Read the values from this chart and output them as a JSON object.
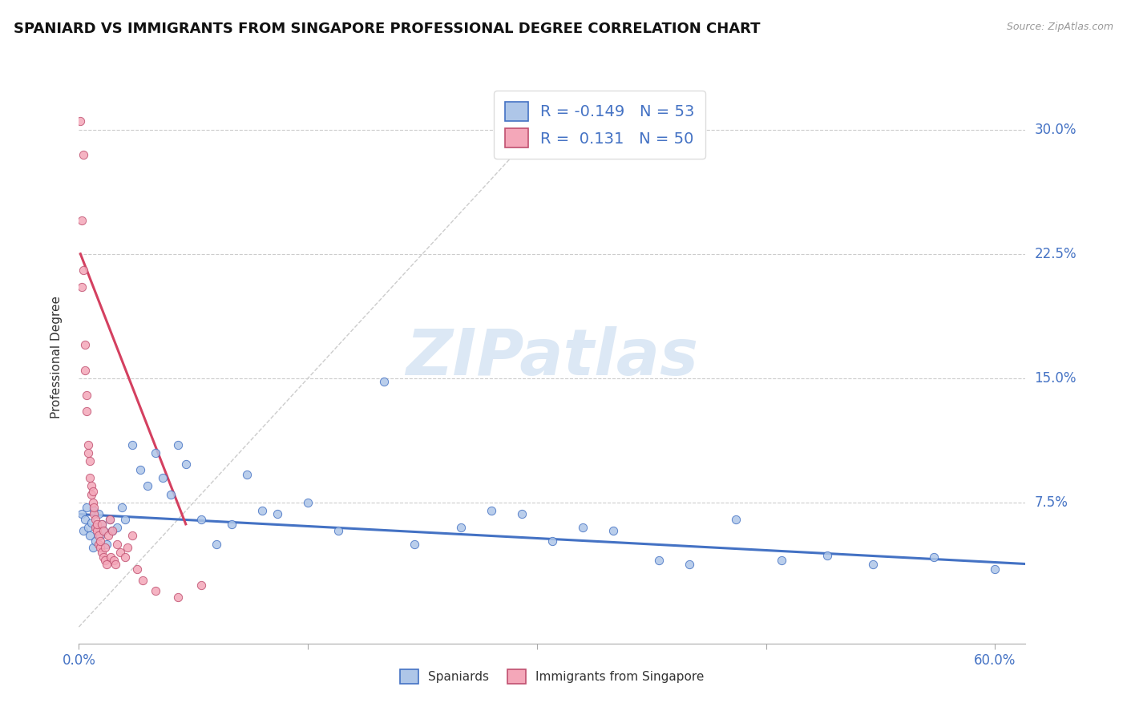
{
  "title": "SPANIARD VS IMMIGRANTS FROM SINGAPORE PROFESSIONAL DEGREE CORRELATION CHART",
  "source": "Source: ZipAtlas.com",
  "ylabel": "Professional Degree",
  "yticks": [
    "7.5%",
    "15.0%",
    "22.5%",
    "30.0%"
  ],
  "ytick_values": [
    0.075,
    0.15,
    0.225,
    0.3
  ],
  "xlim": [
    0.0,
    0.62
  ],
  "ylim": [
    -0.01,
    0.335
  ],
  "r_spaniards": -0.149,
  "n_spaniards": 53,
  "r_singapore": 0.131,
  "n_singapore": 50,
  "color_spaniards": "#aec6e8",
  "color_singapore": "#f4a7b9",
  "color_line_spaniards": "#4472C4",
  "color_line_singapore": "#d44060",
  "legend_label_spaniards": "Spaniards",
  "legend_label_singapore": "Immigrants from Singapore",
  "spaniards_x": [
    0.002,
    0.003,
    0.004,
    0.005,
    0.006,
    0.007,
    0.008,
    0.009,
    0.01,
    0.011,
    0.012,
    0.013,
    0.014,
    0.015,
    0.016,
    0.018,
    0.02,
    0.022,
    0.025,
    0.028,
    0.03,
    0.035,
    0.04,
    0.045,
    0.05,
    0.055,
    0.06,
    0.065,
    0.07,
    0.08,
    0.09,
    0.1,
    0.11,
    0.12,
    0.13,
    0.15,
    0.17,
    0.2,
    0.22,
    0.25,
    0.27,
    0.29,
    0.31,
    0.33,
    0.35,
    0.38,
    0.4,
    0.43,
    0.46,
    0.49,
    0.52,
    0.56,
    0.6
  ],
  "spaniards_y": [
    0.068,
    0.058,
    0.065,
    0.072,
    0.06,
    0.055,
    0.063,
    0.048,
    0.07,
    0.052,
    0.06,
    0.068,
    0.055,
    0.062,
    0.058,
    0.05,
    0.065,
    0.058,
    0.06,
    0.072,
    0.065,
    0.11,
    0.095,
    0.085,
    0.105,
    0.09,
    0.08,
    0.11,
    0.098,
    0.065,
    0.05,
    0.062,
    0.092,
    0.07,
    0.068,
    0.075,
    0.058,
    0.148,
    0.05,
    0.06,
    0.07,
    0.068,
    0.052,
    0.06,
    0.058,
    0.04,
    0.038,
    0.065,
    0.04,
    0.043,
    0.038,
    0.042,
    0.035
  ],
  "singapore_x": [
    0.001,
    0.002,
    0.002,
    0.003,
    0.003,
    0.004,
    0.004,
    0.005,
    0.005,
    0.006,
    0.006,
    0.007,
    0.007,
    0.008,
    0.008,
    0.009,
    0.009,
    0.01,
    0.01,
    0.011,
    0.011,
    0.012,
    0.012,
    0.013,
    0.013,
    0.014,
    0.014,
    0.015,
    0.015,
    0.016,
    0.016,
    0.017,
    0.017,
    0.018,
    0.019,
    0.02,
    0.021,
    0.022,
    0.023,
    0.024,
    0.025,
    0.027,
    0.03,
    0.032,
    0.035,
    0.038,
    0.042,
    0.05,
    0.065,
    0.08
  ],
  "singapore_y": [
    0.305,
    0.245,
    0.205,
    0.285,
    0.215,
    0.17,
    0.155,
    0.14,
    0.13,
    0.11,
    0.105,
    0.1,
    0.09,
    0.085,
    0.08,
    0.082,
    0.075,
    0.068,
    0.072,
    0.065,
    0.06,
    0.058,
    0.062,
    0.055,
    0.05,
    0.048,
    0.052,
    0.045,
    0.062,
    0.058,
    0.042,
    0.048,
    0.04,
    0.038,
    0.055,
    0.065,
    0.042,
    0.058,
    0.04,
    0.038,
    0.05,
    0.045,
    0.042,
    0.048,
    0.055,
    0.035,
    0.028,
    0.022,
    0.018,
    0.025
  ],
  "trendline_spaniards_x0": 0.0,
  "trendline_spaniards_x1": 0.62,
  "trendline_spaniards_y0": 0.068,
  "trendline_spaniards_y1": 0.038,
  "trendline_singapore_x0": 0.001,
  "trendline_singapore_x1": 0.07,
  "trendline_singapore_y0": 0.225,
  "trendline_singapore_y1": 0.062
}
